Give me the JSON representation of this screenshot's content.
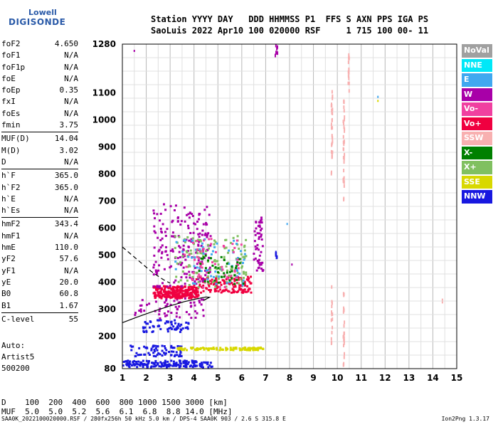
{
  "logo": {
    "line1": "Lowell",
    "line2": "DIGISONDE"
  },
  "header": {
    "line1": "Station YYYY DAY   DDD HHMMSS P1  FFS S AXN PPS IGA PS",
    "line2": "SaoLuis 2022 Apr10 100 020000 RSF     1 715 100 00- 11"
  },
  "params": [
    {
      "label": "foF2",
      "value": "4.650"
    },
    {
      "label": "foF1",
      "value": "N/A"
    },
    {
      "label": "foF1p",
      "value": "N/A"
    },
    {
      "label": "foE",
      "value": "N/A"
    },
    {
      "label": "foEp",
      "value": "0.35"
    },
    {
      "label": "fxI",
      "value": "N/A"
    },
    {
      "label": "foEs",
      "value": "N/A"
    },
    {
      "label": "fmin",
      "value": "3.75"
    },
    {
      "sep": true
    },
    {
      "label": "MUF(D)",
      "value": "14.04"
    },
    {
      "label": "M(D)",
      "value": "3.02"
    },
    {
      "label": "D",
      "value": "N/A"
    },
    {
      "sep": true
    },
    {
      "label": "h`F",
      "value": "365.0"
    },
    {
      "label": "h`F2",
      "value": "365.0"
    },
    {
      "label": "h`E",
      "value": "N/A"
    },
    {
      "label": "h`Es",
      "value": "N/A"
    },
    {
      "sep": true
    },
    {
      "label": "hmF2",
      "value": "343.4"
    },
    {
      "label": "hmF1",
      "value": "N/A"
    },
    {
      "label": "hmE",
      "value": "110.0"
    },
    {
      "label": "yF2",
      "value": "57.6"
    },
    {
      "label": "yF1",
      "value": "N/A"
    },
    {
      "label": "yE",
      "value": "20.0"
    },
    {
      "label": "B0",
      "value": "60.8"
    },
    {
      "label": "B1",
      "value": "1.67"
    },
    {
      "sep": true
    },
    {
      "label": "C-level",
      "value": "55"
    }
  ],
  "left_info": {
    "auto": "Auto:",
    "artist": "Artist5",
    "code": "500200"
  },
  "footer": {
    "d_line": "D    100  200  400  600  800 1000 1500 3000 [km]",
    "muf_line": "MUF  5.0  5.0  5.2  5.6  6.1  6.8  8.8 14.0 [MHz]",
    "bottom": "SAA0K_2022100020000.RSF / 280fx256h 50 kHz 5.0 km / DPS-4 SAA0K 903 / 2.6 S 315.8 E",
    "version": "Ion2Png 1.3.17"
  },
  "legend": [
    {
      "name": "NoVal",
      "color": "#a0a0a0"
    },
    {
      "name": "NNE",
      "color": "#00e8f8"
    },
    {
      "name": "E",
      "color": "#40a8f0"
    },
    {
      "name": "W",
      "color": "#a800a8"
    },
    {
      "name": "Vo-",
      "color": "#f040a0"
    },
    {
      "name": "Vo+",
      "color": "#f00040"
    },
    {
      "name": "SSW",
      "color": "#f8b0b0"
    },
    {
      "name": "X-",
      "color": "#008000"
    },
    {
      "name": "X+",
      "color": "#80c060"
    },
    {
      "name": "SSE",
      "color": "#d8d800"
    },
    {
      "name": "NNW",
      "color": "#1818e0"
    }
  ],
  "chart_data": {
    "type": "scatter",
    "x_ticks": [
      1,
      2,
      3,
      4,
      5,
      6,
      7,
      8,
      9,
      10,
      11,
      12,
      13,
      14,
      15
    ],
    "y_ticks": [
      80,
      200,
      300,
      400,
      500,
      600,
      700,
      800,
      900,
      1000,
      1100,
      1280
    ],
    "xlim": [
      1,
      15
    ],
    "ylim": [
      80,
      1280
    ],
    "grid": true,
    "legend_position": "right",
    "clusters": [
      {
        "name": "NNW",
        "x": [
          1.0,
          4.8
        ],
        "y": [
          85,
          110
        ],
        "n": 160
      },
      {
        "name": "NNW",
        "x": [
          1.3,
          3.5
        ],
        "y": [
          125,
          165
        ],
        "n": 70
      },
      {
        "name": "NNW",
        "x": [
          1.8,
          3.8
        ],
        "y": [
          215,
          260
        ],
        "n": 60
      },
      {
        "name": "SSE",
        "x": [
          3.2,
          6.9
        ],
        "y": [
          148,
          158
        ],
        "n": 110
      },
      {
        "name": "W",
        "x": [
          1.5,
          4.5
        ],
        "y": [
          265,
          340
        ],
        "n": 60
      },
      {
        "name": "Vo+",
        "x": [
          2.3,
          4.2
        ],
        "y": [
          340,
          385
        ],
        "n": 260
      },
      {
        "name": "Vo+",
        "x": [
          4.0,
          6.4
        ],
        "y": [
          360,
          420
        ],
        "n": 140
      },
      {
        "name": "W",
        "x": [
          2.3,
          4.7
        ],
        "y": [
          380,
          690
        ],
        "n": 200
      },
      {
        "name": "X+",
        "x": [
          3.2,
          6.2
        ],
        "y": [
          380,
          570
        ],
        "n": 130
      },
      {
        "name": "E",
        "x": [
          3.2,
          6.2
        ],
        "y": [
          385,
          560
        ],
        "n": 60
      },
      {
        "name": "Vo-",
        "x": [
          3.6,
          6.1
        ],
        "y": [
          380,
          560
        ],
        "n": 60
      },
      {
        "name": "X-",
        "x": [
          4.0,
          6.1
        ],
        "y": [
          390,
          500
        ],
        "n": 40
      },
      {
        "name": "W",
        "x": [
          6.5,
          6.9
        ],
        "y": [
          440,
          640
        ],
        "n": 50
      },
      {
        "name": "NNW",
        "x": [
          7.4,
          7.5
        ],
        "y": [
          490,
          510
        ],
        "n": 6
      },
      {
        "name": "W",
        "x": [
          7.4,
          7.5
        ],
        "y": [
          1230,
          1275
        ],
        "n": 8
      },
      {
        "name": "SSW",
        "x": [
          9.75,
          9.8
        ],
        "y": [
          170,
          390
        ],
        "n": 14
      },
      {
        "name": "SSW",
        "x": [
          9.75,
          9.8
        ],
        "y": [
          790,
          1110
        ],
        "n": 30
      },
      {
        "name": "SSW",
        "x": [
          10.25,
          10.3
        ],
        "y": [
          85,
          360
        ],
        "n": 25
      },
      {
        "name": "SSW",
        "x": [
          10.25,
          10.3
        ],
        "y": [
          690,
          1080
        ],
        "n": 35
      },
      {
        "name": "SSW",
        "x": [
          10.45,
          10.5
        ],
        "y": [
          1100,
          1260
        ],
        "n": 15
      }
    ],
    "isolated_points": [
      {
        "name": "W",
        "x": 1.5,
        "y": 1255
      },
      {
        "name": "E",
        "x": 11.7,
        "y": 1085
      },
      {
        "name": "SSE",
        "x": 11.7,
        "y": 1070
      },
      {
        "name": "SSW",
        "x": 14.4,
        "y": 335
      },
      {
        "name": "SSW",
        "x": 14.4,
        "y": 325
      },
      {
        "name": "W",
        "x": 8.1,
        "y": 465
      },
      {
        "name": "E",
        "x": 7.9,
        "y": 615
      }
    ],
    "curves": [
      {
        "name": "profile",
        "style": "solid",
        "x": [
          1.0,
          1.6,
          2.3,
          3.0,
          3.6,
          4.1,
          4.5,
          4.65,
          4.4
        ],
        "y": [
          250,
          270,
          292,
          312,
          328,
          338,
          345,
          344,
          332
        ]
      },
      {
        "name": "profile-extrapolated",
        "style": "dashed",
        "x": [
          1.0,
          1.4,
          1.8,
          2.2,
          2.7,
          3.0
        ],
        "y": [
          530,
          500,
          470,
          440,
          410,
          396
        ]
      }
    ]
  }
}
